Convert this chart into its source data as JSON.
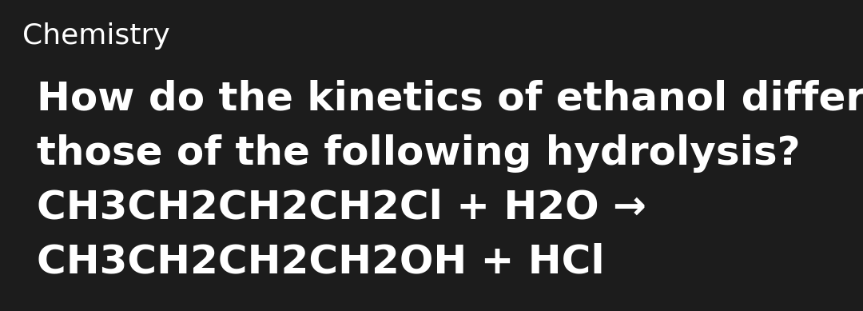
{
  "background_color": "#1c1c1c",
  "title_text": "Chemistry",
  "title_fontsize": 26,
  "title_color": "#ffffff",
  "title_fontweight": "normal",
  "lines": [
    "How do the kinetics of ethanol differ from",
    "those of the following hydrolysis?",
    "CH3CH2CH2CH2Cl + H2O →",
    "CH3CH2CH2CH2OH + HCl"
  ],
  "body_fontsize": 36,
  "body_color": "#ffffff",
  "body_fontweight": "bold",
  "figsize": [
    10.8,
    3.89
  ],
  "dpi": 100
}
